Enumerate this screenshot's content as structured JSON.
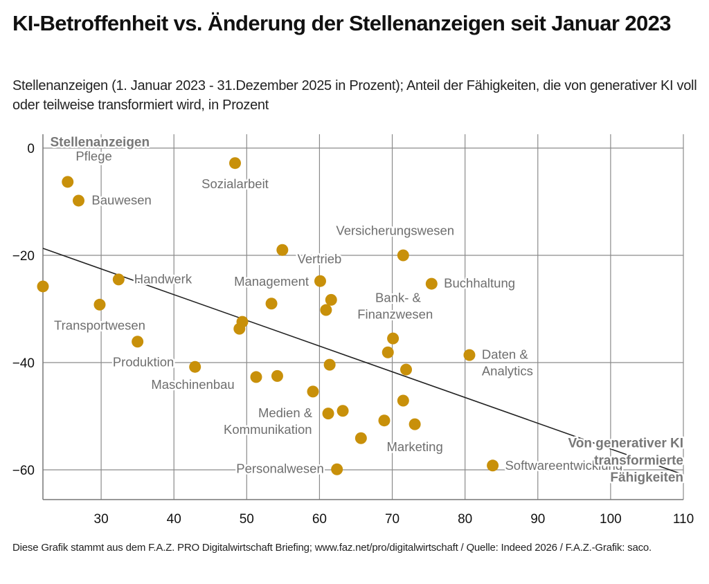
{
  "header": {
    "title": "KI-Betroffenheit vs. Änderung der Stellenanzeigen seit Januar 2023",
    "subtitle": "Stellenanzeigen (1. Januar 2023 - 31.Dezember 2025 in Prozent); Anteil der Fähigkeiten, die von generativer KI voll oder teilweise transformiert wird, in Prozent"
  },
  "footer": {
    "text": "Diese Grafik stammt aus dem F.A.Z. PRO Digitalwirtschaft Briefing; www.faz.net/pro/digitalwirtschaft / Quelle: Indeed 2026 / F.A.Z.-Grafik: saco."
  },
  "colors": {
    "dot": "#c8900a",
    "label": "#6e6e6e",
    "trend": "#222222",
    "grid": "#8a8a8a"
  },
  "chart_data": {
    "type": "scatter",
    "title": "KI-Betroffenheit vs. Änderung der Stellenanzeigen seit Januar 2023",
    "xlabel": "Von generativer KI transformierte Fähigkeiten",
    "ylabel": "Stellenanzeigen",
    "xlim": [
      22,
      110
    ],
    "ylim": [
      -65.5,
      3
    ],
    "xticks": [
      30,
      40,
      50,
      60,
      70,
      80,
      90,
      100,
      110
    ],
    "yticks": [
      0,
      -20,
      -40,
      -60
    ],
    "ytick_labels": [
      "0",
      "−20",
      "−40",
      "−60"
    ],
    "grid": true,
    "points": [
      {
        "x": 25.4,
        "y": -6.3,
        "label": "Pflege"
      },
      {
        "x": 26.9,
        "y": -9.8,
        "label": "Bauwesen"
      },
      {
        "x": 48.4,
        "y": -2.8,
        "label": "Sozialarbeit"
      },
      {
        "x": 54.9,
        "y": -19.0,
        "label": "Vertrieb"
      },
      {
        "x": 71.5,
        "y": -20.0,
        "label": "Versicherungswesen"
      },
      {
        "x": 60.1,
        "y": -24.8,
        "label": "Management"
      },
      {
        "x": 75.4,
        "y": -25.3,
        "label": "Buchhaltung"
      },
      {
        "x": 32.4,
        "y": -24.5,
        "label": "Handwerk"
      },
      {
        "x": 22.0,
        "y": -25.8,
        "label": ""
      },
      {
        "x": 29.8,
        "y": -29.2,
        "label": "Transportwesen"
      },
      {
        "x": 53.4,
        "y": -29.0,
        "label": ""
      },
      {
        "x": 61.6,
        "y": -28.3,
        "label": ""
      },
      {
        "x": 60.9,
        "y": -30.2,
        "label": ""
      },
      {
        "x": 49.4,
        "y": -32.4,
        "label": ""
      },
      {
        "x": 49.0,
        "y": -33.7,
        "label": ""
      },
      {
        "x": 35.0,
        "y": -36.1,
        "label": "Produktion"
      },
      {
        "x": 70.1,
        "y": -35.5,
        "label": "Bank- & Finanzwesen"
      },
      {
        "x": 69.4,
        "y": -38.1,
        "label": ""
      },
      {
        "x": 80.6,
        "y": -38.6,
        "label": "Daten & Analytics"
      },
      {
        "x": 42.9,
        "y": -40.8,
        "label": "Maschinenbau"
      },
      {
        "x": 61.4,
        "y": -40.4,
        "label": ""
      },
      {
        "x": 71.9,
        "y": -41.3,
        "label": ""
      },
      {
        "x": 51.3,
        "y": -42.7,
        "label": ""
      },
      {
        "x": 54.2,
        "y": -42.5,
        "label": ""
      },
      {
        "x": 59.1,
        "y": -45.4,
        "label": ""
      },
      {
        "x": 71.5,
        "y": -47.1,
        "label": ""
      },
      {
        "x": 61.2,
        "y": -49.5,
        "label": "Medien & Kommunikation"
      },
      {
        "x": 63.2,
        "y": -49.0,
        "label": ""
      },
      {
        "x": 68.9,
        "y": -50.8,
        "label": ""
      },
      {
        "x": 73.1,
        "y": -51.5,
        "label": "Marketing"
      },
      {
        "x": 65.7,
        "y": -54.1,
        "label": ""
      },
      {
        "x": 62.4,
        "y": -59.9,
        "label": "Personalwesen"
      },
      {
        "x": 83.8,
        "y": -59.2,
        "label": "Softwareentwicklung"
      }
    ],
    "trendline": {
      "x": [
        22,
        110
      ],
      "y": [
        -18.7,
        -60.9
      ]
    },
    "annotations": [
      {
        "text": "Pflege",
        "x": 29.0,
        "y": -2.3,
        "anchor": "middle"
      },
      {
        "text": "Bauwesen",
        "x": 28.7,
        "y": -10.5,
        "anchor": "start"
      },
      {
        "text": "Sozialarbeit",
        "x": 48.4,
        "y": -7.5,
        "anchor": "middle"
      },
      {
        "text": "Versicherungswesen",
        "x": 70.4,
        "y": -16.2,
        "anchor": "middle"
      },
      {
        "text": "Vertrieb",
        "x": 60.0,
        "y": -21.5,
        "anchor": "middle"
      },
      {
        "text": "Handwerk",
        "x": 38.5,
        "y": -25.2,
        "anchor": "middle"
      },
      {
        "text": "Management",
        "x": 53.4,
        "y": -25.7,
        "anchor": "middle"
      },
      {
        "text": "Buchhaltung",
        "x": 77.1,
        "y": -26.0,
        "anchor": "start"
      },
      {
        "text": "Bank- &",
        "x": 70.8,
        "y": -28.7,
        "anchor": "middle"
      },
      {
        "text": "Finanzwesen",
        "x": 70.4,
        "y": -31.8,
        "anchor": "middle"
      },
      {
        "text": "Transportwesen",
        "x": 29.8,
        "y": -33.9,
        "anchor": "middle"
      },
      {
        "text": "Produktion",
        "x": 35.8,
        "y": -40.7,
        "anchor": "middle"
      },
      {
        "text": "Daten &",
        "x": 82.3,
        "y": -39.3,
        "anchor": "start"
      },
      {
        "text": "Analytics",
        "x": 82.3,
        "y": -42.4,
        "anchor": "start"
      },
      {
        "text": "Maschinenbau",
        "x": 42.6,
        "y": -44.9,
        "anchor": "middle"
      },
      {
        "text": "Medien &",
        "x": 55.3,
        "y": -50.2,
        "anchor": "middle"
      },
      {
        "text": "Kommunikation",
        "x": 52.9,
        "y": -53.3,
        "anchor": "middle"
      },
      {
        "text": "Marketing",
        "x": 73.1,
        "y": -56.5,
        "anchor": "middle"
      },
      {
        "text": "Personalwesen",
        "x": 60.6,
        "y": -60.6,
        "anchor": "end"
      },
      {
        "text": "Softwareentwicklung",
        "x": 85.5,
        "y": -60.0,
        "anchor": "start"
      }
    ],
    "axis_titles": [
      {
        "text": "Stellenanzeigen",
        "x": 23.0,
        "y": 0.3,
        "anchor": "start"
      },
      {
        "text": "Von generativer KI",
        "x": 110,
        "y": -55.8,
        "anchor": "end"
      },
      {
        "text": "transformierte",
        "x": 110,
        "y": -59.0,
        "anchor": "end"
      },
      {
        "text": "Fähigkeiten",
        "x": 110,
        "y": -62.2,
        "anchor": "end"
      }
    ]
  }
}
